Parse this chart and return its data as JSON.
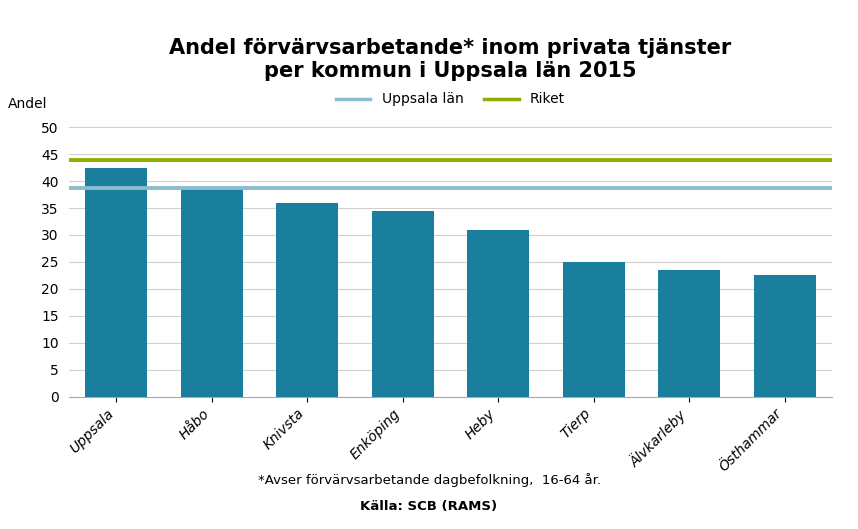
{
  "title": "Andel förvärvsarbetande* inom privata tjänster\nper kommun i Uppsala län 2015",
  "ylabel": "Andel",
  "categories": [
    "Uppsala",
    "Håbo",
    "Knivsta",
    "Enköping",
    "Heby",
    "Tierp",
    "Älvkarleby",
    "Östhammar"
  ],
  "values": [
    42.5,
    38.5,
    36.0,
    34.5,
    31.0,
    25.0,
    23.5,
    22.5
  ],
  "bar_color": "#1a7f9c",
  "Uppsala_lan_value": 38.7,
  "Riket_value": 44.0,
  "Uppsala_lan_color": "#8bbdd0",
  "Riket_color": "#8db000",
  "ylim": [
    0,
    52
  ],
  "yticks": [
    0,
    5,
    10,
    15,
    20,
    25,
    30,
    35,
    40,
    45,
    50
  ],
  "legend_Uppsala_lan": "Uppsala län",
  "legend_Riket": "Riket",
  "footnote1": "*Avser förvärvsarbetande dagbefolkning,  16-64 år.",
  "footnote2": "Källa: SCB (RAMS)",
  "background_color": "#ffffff",
  "title_fontsize": 15,
  "axis_label_fontsize": 10
}
